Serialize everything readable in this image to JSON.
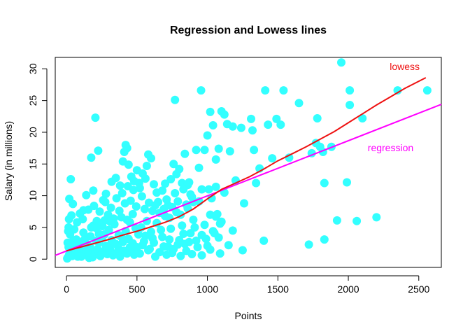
{
  "chart_data": {
    "type": "scatter",
    "title": "Regression and Lowess lines",
    "xlabel": "Points",
    "ylabel": "Salary (in millions)",
    "xlim": [
      -80,
      2660
    ],
    "ylim": [
      -1.3,
      31.8
    ],
    "x_ticks": [
      0,
      500,
      1000,
      1500,
      2000,
      2500
    ],
    "y_ticks": [
      0,
      5,
      10,
      15,
      20,
      25,
      30
    ],
    "x_tick_labels": [
      "0",
      "500",
      "1000",
      "1500",
      "2000",
      "2500"
    ],
    "y_tick_labels": [
      "0",
      "5",
      "10",
      "15",
      "20",
      "25",
      "30"
    ],
    "grid": false,
    "legend": "none",
    "colors": {
      "points": "#33FFFF",
      "regression": "#FF00FF",
      "lowess": "#EE1111",
      "axis": "#000000"
    },
    "annotations": [
      {
        "text": "lowess",
        "x": 2400,
        "y": 29.8,
        "color": "#EE1111",
        "anchor": "middle"
      },
      {
        "text": "regression",
        "x": 2300,
        "y": 17.0,
        "color": "#FF00FF",
        "anchor": "middle"
      }
    ],
    "series": [
      {
        "name": "regression",
        "type": "line",
        "x": [
          -80,
          2660
        ],
        "y": [
          0.6,
          24.4
        ]
      },
      {
        "name": "lowess",
        "type": "line",
        "x": [
          0,
          100,
          200,
          300,
          400,
          500,
          600,
          700,
          800,
          900,
          1000,
          1100,
          1200,
          1300,
          1400,
          1500,
          1600,
          1700,
          1800,
          1900,
          2000,
          2100,
          2200,
          2300,
          2400,
          2550
        ],
        "y": [
          1.3,
          1.9,
          2.5,
          3.1,
          3.8,
          4.4,
          5.1,
          5.8,
          6.7,
          7.9,
          9.5,
          11.0,
          12.0,
          13.0,
          14.2,
          15.5,
          16.6,
          17.7,
          18.9,
          20.1,
          21.5,
          22.9,
          24.3,
          25.6,
          26.9,
          28.6
        ]
      },
      {
        "name": "points",
        "type": "scatter",
        "points": [
          [
            10,
            0.3
          ],
          [
            20,
            0.8
          ],
          [
            30,
            1.2
          ],
          [
            40,
            0.5
          ],
          [
            50,
            2.0
          ],
          [
            60,
            1.5
          ],
          [
            70,
            3.1
          ],
          [
            80,
            0.4
          ],
          [
            90,
            2.6
          ],
          [
            100,
            1.1
          ],
          [
            110,
            0.6
          ],
          [
            120,
            4.2
          ],
          [
            130,
            1.8
          ],
          [
            140,
            0.9
          ],
          [
            150,
            2.3
          ],
          [
            160,
            0.2
          ],
          [
            170,
            3.6
          ],
          [
            180,
            1.4
          ],
          [
            190,
            5.3
          ],
          [
            200,
            0.7
          ],
          [
            210,
            2.9
          ],
          [
            220,
            1.6
          ],
          [
            230,
            4.0
          ],
          [
            240,
            0.5
          ],
          [
            250,
            3.3
          ],
          [
            260,
            1.2
          ],
          [
            270,
            6.1
          ],
          [
            280,
            2.1
          ],
          [
            290,
            0.8
          ],
          [
            300,
            4.6
          ],
          [
            310,
            1.5
          ],
          [
            320,
            3.0
          ],
          [
            330,
            0.6
          ],
          [
            340,
            5.5
          ],
          [
            350,
            2.4
          ],
          [
            360,
            1.0
          ],
          [
            370,
            3.8
          ],
          [
            380,
            0.4
          ],
          [
            390,
            6.6
          ],
          [
            400,
            2.7
          ],
          [
            410,
            1.3
          ],
          [
            420,
            4.4
          ],
          [
            430,
            0.9
          ],
          [
            440,
            3.2
          ],
          [
            450,
            5.8
          ],
          [
            460,
            1.7
          ],
          [
            470,
            2.5
          ],
          [
            480,
            0.7
          ],
          [
            490,
            4.9
          ],
          [
            500,
            1.9
          ],
          [
            15,
            5.0
          ],
          [
            25,
            3.9
          ],
          [
            35,
            6.9
          ],
          [
            45,
            2.8
          ],
          [
            55,
            4.7
          ],
          [
            75,
            5.8
          ],
          [
            95,
            7.2
          ],
          [
            115,
            6.3
          ],
          [
            135,
            3.4
          ],
          [
            155,
            7.8
          ],
          [
            175,
            5.0
          ],
          [
            195,
            8.4
          ],
          [
            215,
            6.0
          ],
          [
            235,
            7.5
          ],
          [
            255,
            5.2
          ],
          [
            275,
            9.0
          ],
          [
            295,
            7.0
          ],
          [
            315,
            8.1
          ],
          [
            335,
            6.4
          ],
          [
            355,
            9.6
          ],
          [
            375,
            7.6
          ],
          [
            395,
            10.4
          ],
          [
            415,
            8.8
          ],
          [
            435,
            11.5
          ],
          [
            455,
            9.2
          ],
          [
            475,
            10.9
          ],
          [
            495,
            8.3
          ],
          [
            515,
            12.0
          ],
          [
            535,
            9.9
          ],
          [
            555,
            7.9
          ],
          [
            20,
            9.5
          ],
          [
            30,
            12.6
          ],
          [
            45,
            8.7
          ],
          [
            120,
            7.7
          ],
          [
            140,
            10.1
          ],
          [
            175,
            16.0
          ],
          [
            205,
            22.3
          ],
          [
            225,
            17.1
          ],
          [
            190,
            10.8
          ],
          [
            260,
            9.3
          ],
          [
            280,
            10.3
          ],
          [
            320,
            12.2
          ],
          [
            350,
            12.8
          ],
          [
            380,
            11.6
          ],
          [
            400,
            15.4
          ],
          [
            410,
            16.9
          ],
          [
            420,
            18.0
          ],
          [
            430,
            17.5
          ],
          [
            440,
            14.9
          ],
          [
            460,
            13.0
          ],
          [
            480,
            12.3
          ],
          [
            500,
            14.0
          ],
          [
            520,
            11.2
          ],
          [
            540,
            13.5
          ],
          [
            560,
            12.7
          ],
          [
            570,
            14.7
          ],
          [
            580,
            16.5
          ],
          [
            600,
            15.9
          ],
          [
            620,
            11.8
          ],
          [
            640,
            10.5
          ],
          [
            520,
            0.9
          ],
          [
            540,
            2.2
          ],
          [
            560,
            3.7
          ],
          [
            580,
            1.4
          ],
          [
            600,
            4.3
          ],
          [
            620,
            2.6
          ],
          [
            640,
            5.7
          ],
          [
            660,
            1.1
          ],
          [
            680,
            3.5
          ],
          [
            700,
            6.8
          ],
          [
            720,
            2.0
          ],
          [
            740,
            4.8
          ],
          [
            760,
            1.6
          ],
          [
            780,
            7.4
          ],
          [
            800,
            3.0
          ],
          [
            820,
            5.3
          ],
          [
            840,
            2.4
          ],
          [
            860,
            8.0
          ],
          [
            880,
            4.1
          ],
          [
            900,
            6.2
          ],
          [
            920,
            2.9
          ],
          [
            940,
            9.1
          ],
          [
            960,
            3.8
          ],
          [
            980,
            5.4
          ],
          [
            1000,
            2.1
          ],
          [
            1020,
            7.0
          ],
          [
            1040,
            4.4
          ],
          [
            1060,
            6.7
          ],
          [
            1080,
            3.4
          ],
          [
            1100,
            5.9
          ],
          [
            650,
            9.0
          ],
          [
            680,
            10.8
          ],
          [
            700,
            11.9
          ],
          [
            720,
            8.5
          ],
          [
            740,
            12.6
          ],
          [
            760,
            15.0
          ],
          [
            780,
            13.4
          ],
          [
            800,
            14.2
          ],
          [
            820,
            12.0
          ],
          [
            840,
            16.6
          ],
          [
            860,
            11.7
          ],
          [
            880,
            10.2
          ],
          [
            900,
            9.0
          ],
          [
            920,
            17.2
          ],
          [
            940,
            14.4
          ],
          [
            960,
            11.0
          ],
          [
            980,
            17.2
          ],
          [
            1000,
            19.5
          ],
          [
            1020,
            23.2
          ],
          [
            1040,
            21.1
          ],
          [
            1060,
            15.7
          ],
          [
            1080,
            17.4
          ],
          [
            1100,
            23.3
          ],
          [
            1120,
            22.8
          ],
          [
            1140,
            21.3
          ],
          [
            1160,
            17.0
          ],
          [
            1180,
            20.9
          ],
          [
            1200,
            12.4
          ],
          [
            1240,
            20.7
          ],
          [
            1260,
            8.8
          ],
          [
            770,
            25.1
          ],
          [
            955,
            26.6
          ],
          [
            1310,
            22.1
          ],
          [
            1320,
            20.3
          ],
          [
            1330,
            17.2
          ],
          [
            1345,
            12.0
          ],
          [
            1370,
            14.3
          ],
          [
            1400,
            2.9
          ],
          [
            1410,
            26.6
          ],
          [
            1430,
            21.2
          ],
          [
            1460,
            15.9
          ],
          [
            1490,
            22.1
          ],
          [
            1520,
            21.2
          ],
          [
            1540,
            26.6
          ],
          [
            1580,
            16.0
          ],
          [
            1650,
            24.6
          ],
          [
            1720,
            2.3
          ],
          [
            1740,
            16.7
          ],
          [
            1770,
            18.3
          ],
          [
            1780,
            22.2
          ],
          [
            1800,
            17.7
          ],
          [
            1820,
            16.9
          ],
          [
            1830,
            12.0
          ],
          [
            1830,
            3.1
          ],
          [
            1880,
            17.7
          ],
          [
            1920,
            6.1
          ],
          [
            1950,
            31.0
          ],
          [
            2010,
            26.6
          ],
          [
            2010,
            24.3
          ],
          [
            2060,
            6.0
          ],
          [
            2100,
            22.2
          ],
          [
            1990,
            12.1
          ],
          [
            2200,
            6.6
          ],
          [
            2350,
            26.6
          ],
          [
            2560,
            26.6
          ],
          [
            1250,
            1.4
          ],
          [
            1150,
            2.2
          ],
          [
            1120,
            10.5
          ],
          [
            1060,
            11.4
          ],
          [
            1180,
            4.5
          ],
          [
            1090,
            0.9
          ],
          [
            1020,
            1.5
          ],
          [
            990,
            3.2
          ],
          [
            960,
            0.6
          ],
          [
            930,
            1.9
          ],
          [
            910,
            5.0
          ],
          [
            890,
            0.8
          ],
          [
            870,
            2.7
          ],
          [
            850,
            1.3
          ],
          [
            830,
            4.0
          ],
          [
            810,
            0.5
          ],
          [
            790,
            2.3
          ],
          [
            750,
            1.0
          ],
          [
            730,
            3.1
          ],
          [
            710,
            0.7
          ],
          [
            690,
            2.0
          ],
          [
            670,
            4.6
          ],
          [
            630,
            0.4
          ],
          [
            610,
            3.3
          ],
          [
            590,
            1.6
          ],
          [
            570,
            6.0
          ],
          [
            550,
            2.8
          ],
          [
            530,
            5.0
          ],
          [
            510,
            3.9
          ],
          [
            470,
            7.1
          ],
          [
            450,
            1.9
          ],
          [
            430,
            6.2
          ],
          [
            390,
            3.5
          ],
          [
            370,
            1.6
          ],
          [
            330,
            2.5
          ],
          [
            310,
            5.9
          ],
          [
            290,
            1.9
          ],
          [
            270,
            3.9
          ],
          [
            250,
            0.9
          ],
          [
            230,
            2.6
          ],
          [
            210,
            4.9
          ],
          [
            185,
            0.3
          ],
          [
            165,
            2.0
          ],
          [
            145,
            1.2
          ],
          [
            125,
            3.0
          ],
          [
            105,
            0.4
          ],
          [
            85,
            1.7
          ],
          [
            65,
            0.6
          ],
          [
            15,
            1.9
          ],
          [
            5,
            0.1
          ],
          [
            8,
            2.6
          ],
          [
            12,
            4.4
          ],
          [
            18,
            6.3
          ],
          [
            28,
            0.6
          ],
          [
            38,
            2.2
          ],
          [
            585,
            8.9
          ],
          [
            610,
            7.6
          ],
          [
            630,
            8.5
          ],
          [
            660,
            7.3
          ],
          [
            690,
            7.9
          ],
          [
            710,
            9.4
          ],
          [
            730,
            6.5
          ],
          [
            750,
            8.2
          ],
          [
            770,
            10.4
          ],
          [
            790,
            9.1
          ],
          [
            810,
            7.0
          ],
          [
            830,
            11.0
          ],
          [
            850,
            8.6
          ],
          [
            870,
            12.1
          ],
          [
            890,
            9.8
          ],
          [
            1010,
            11.0
          ],
          [
            1030,
            9.6
          ],
          [
            1050,
            4.1
          ],
          [
            1070,
            7.1
          ],
          [
            1090,
            5.6
          ]
        ]
      }
    ]
  }
}
